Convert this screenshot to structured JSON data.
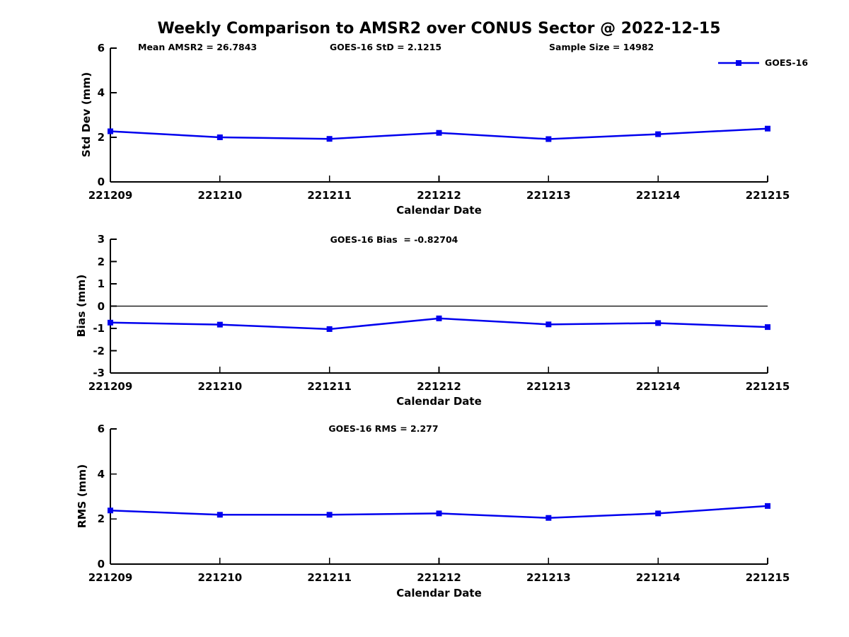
{
  "title": "Weekly Comparison to AMSR2 over CONUS Sector @ 2022-12-15",
  "legend": {
    "label": "GOES-16"
  },
  "colors": {
    "line": "#0000EE",
    "axis": "#000000"
  },
  "chart_data": [
    {
      "type": "line",
      "panel": "std-dev",
      "annotations": [
        "Mean AMSR2 = 26.7843",
        "GOES-16 StD = 2.1215",
        "Sample Size = 14982"
      ],
      "ylabel": "Std Dev (mm)",
      "xlabel": "Calendar Date",
      "categories": [
        "221209",
        "221210",
        "221211",
        "221212",
        "221213",
        "221214",
        "221215"
      ],
      "ylim": [
        0,
        6
      ],
      "yticks": [
        0,
        2,
        4,
        6
      ],
      "grid": false,
      "legend_position": "top-right",
      "series": [
        {
          "name": "GOES-16",
          "values": [
            2.27,
            2.0,
            1.93,
            2.2,
            1.92,
            2.14,
            2.39
          ]
        }
      ]
    },
    {
      "type": "line",
      "panel": "bias",
      "annotations": [
        "GOES-16 Bias  = -0.82704"
      ],
      "ylabel": "Bias (mm)",
      "xlabel": "Calendar Date",
      "categories": [
        "221209",
        "221210",
        "221211",
        "221212",
        "221213",
        "221214",
        "221215"
      ],
      "ylim": [
        -3,
        3
      ],
      "yticks": [
        -3,
        -2,
        -1,
        0,
        1,
        2,
        3
      ],
      "zero_line": true,
      "grid": false,
      "series": [
        {
          "name": "GOES-16",
          "values": [
            -0.74,
            -0.83,
            -1.03,
            -0.55,
            -0.82,
            -0.76,
            -0.94
          ]
        }
      ]
    },
    {
      "type": "line",
      "panel": "rms",
      "annotations": [
        "GOES-16 RMS = 2.277"
      ],
      "ylabel": "RMS (mm)",
      "xlabel": "Calendar Date",
      "categories": [
        "221209",
        "221210",
        "221211",
        "221212",
        "221213",
        "221214",
        "221215"
      ],
      "ylim": [
        0,
        6
      ],
      "yticks": [
        0,
        2,
        4,
        6
      ],
      "grid": false,
      "series": [
        {
          "name": "GOES-16",
          "values": [
            2.38,
            2.19,
            2.19,
            2.25,
            2.05,
            2.25,
            2.58
          ]
        }
      ]
    }
  ]
}
